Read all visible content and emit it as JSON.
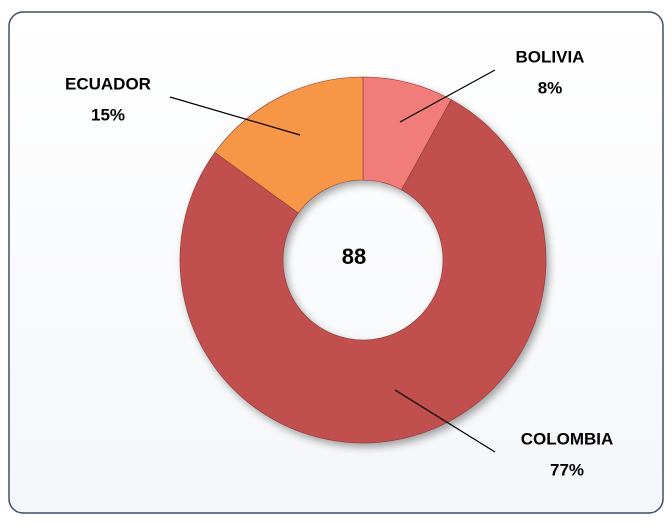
{
  "chart_data": {
    "type": "donut",
    "categories": [
      "BOLIVIA",
      "COLOMBIA",
      "ECUADOR"
    ],
    "values": [
      8,
      77,
      15
    ],
    "value_labels": [
      "8%",
      "77%",
      "15%"
    ],
    "colors": [
      "#f27c7a",
      "#c0504d",
      "#f79646"
    ],
    "total": 88
  }
}
